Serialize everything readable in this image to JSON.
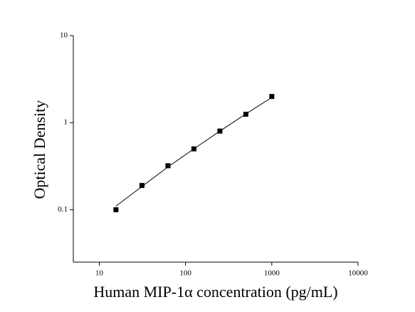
{
  "chart_data": {
    "type": "scatter",
    "x_label": "Human MIP-1α concentration (pg/mL)",
    "y_label": "Optical Density",
    "x": [
      15.6,
      31.25,
      62.5,
      125,
      250,
      500,
      1000
    ],
    "series": [
      {
        "color": "#000000",
        "values": [
          0.1,
          0.19,
          0.32,
          0.5,
          0.8,
          1.25,
          2.0
        ]
      },
      {
        "color": "#000000",
        "line": true,
        "values": [
          0.11,
          0.185,
          0.31,
          0.5,
          0.8,
          1.26,
          1.95
        ]
      }
    ],
    "xlim": [
      5,
      10000
    ],
    "xticks": [
      10,
      100,
      1000,
      10000
    ],
    "ylim": [
      0.025,
      10
    ],
    "yticks": [
      0.1,
      1,
      10
    ],
    "xscale": "log",
    "yscale": "log",
    "grid": false
  }
}
